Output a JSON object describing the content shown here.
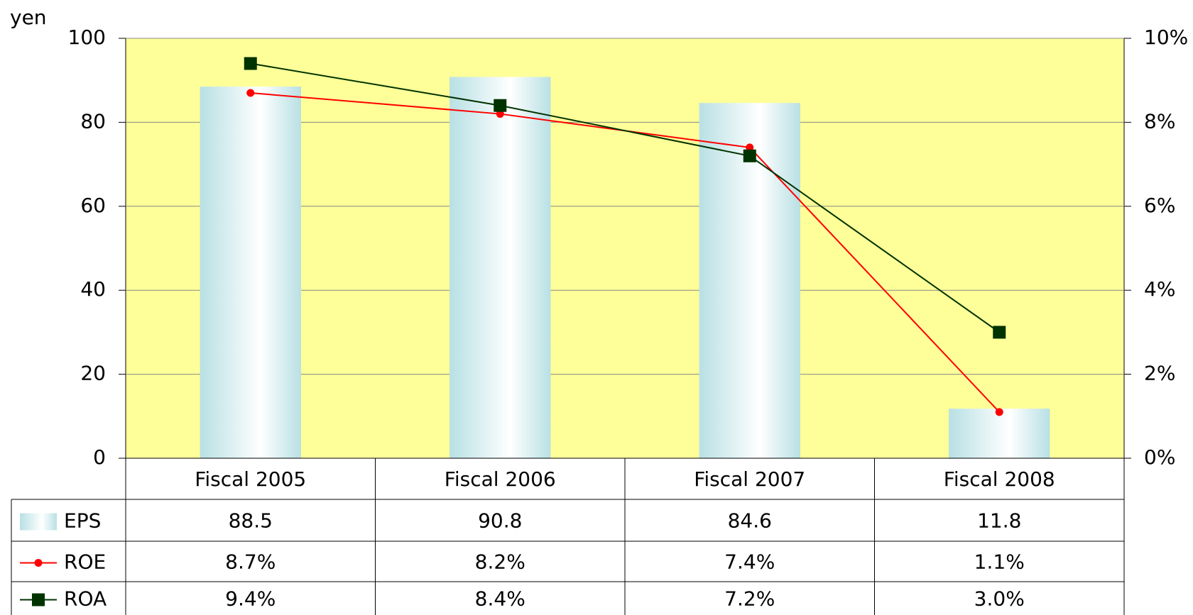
{
  "chart_data": {
    "type": "bar_line_table",
    "y_label": "yen",
    "categories": [
      "Fiscal 2005",
      "Fiscal 2006",
      "Fiscal 2007",
      "Fiscal 2008"
    ],
    "series": [
      {
        "name": "EPS",
        "type": "bar",
        "color": "#b8e0e4",
        "values": [
          88.5,
          90.8,
          84.6,
          11.8
        ]
      },
      {
        "name": "ROE",
        "type": "line",
        "axis": "y2",
        "color": "#ff0000",
        "marker": "circle",
        "values": [
          8.7,
          8.2,
          7.4,
          1.1
        ],
        "value_labels": [
          "8.7%",
          "8.2%",
          "7.4%",
          "1.1%"
        ]
      },
      {
        "name": "ROA",
        "type": "line",
        "axis": "y2",
        "color": "#003300",
        "marker": "square",
        "values": [
          9.4,
          8.4,
          7.2,
          3.0
        ],
        "value_labels": [
          "9.4%",
          "8.4%",
          "7.2%",
          "3.0%"
        ]
      }
    ],
    "ylim": [
      0,
      100
    ],
    "yticks": [
      0,
      20,
      40,
      60,
      80,
      100
    ],
    "y2lim": [
      0,
      10
    ],
    "y2ticks": [
      {
        "value": 0,
        "label": "0%"
      },
      {
        "value": 2,
        "label": "2%"
      },
      {
        "value": 4,
        "label": "4%"
      },
      {
        "value": 6,
        "label": "6%"
      },
      {
        "value": 8,
        "label": "8%"
      },
      {
        "value": 10,
        "label": "10%"
      }
    ],
    "grid": true,
    "plot_background": "#ffff99"
  }
}
